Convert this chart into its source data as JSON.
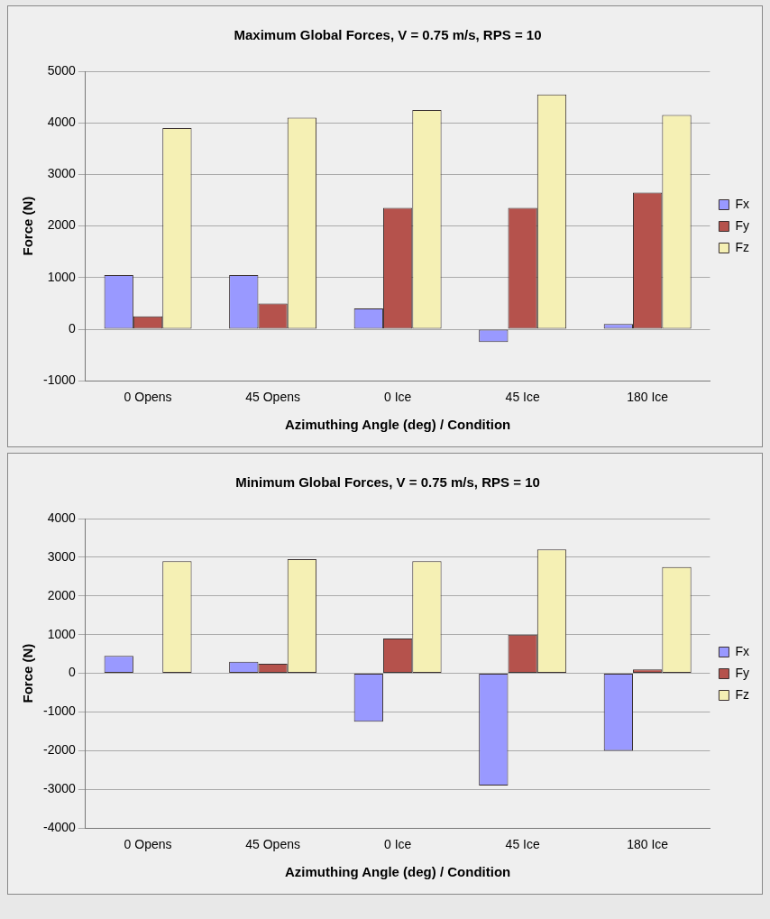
{
  "chart_data": [
    {
      "type": "bar",
      "title": "Maximum Global Forces, V = 0.75 m/s, RPS = 10",
      "xlabel": "Azimuthing Angle (deg) / Condition",
      "ylabel": "Force (N)",
      "categories": [
        "0 Opens",
        "45 Opens",
        "0 Ice",
        "45 Ice",
        "180 Ice"
      ],
      "series": [
        {
          "name": "Fx",
          "color": "#9999ff",
          "values": [
            1050,
            1050,
            400,
            -250,
            100
          ]
        },
        {
          "name": "Fy",
          "color": "#b5524c",
          "values": [
            250,
            500,
            2350,
            2350,
            2650
          ]
        },
        {
          "name": "Fz",
          "color": "#f5f0b4",
          "values": [
            3900,
            4100,
            4250,
            4550,
            4150
          ]
        }
      ],
      "ylim": [
        -1000,
        5000
      ],
      "yticks": [
        -1000,
        0,
        1000,
        2000,
        3000,
        4000,
        5000
      ],
      "grid": "y",
      "legend": "right"
    },
    {
      "type": "bar",
      "title": "Minimum Global Forces, V = 0.75 m/s, RPS = 10",
      "xlabel": "Azimuthing Angle (deg) / Condition",
      "ylabel": "Force (N)",
      "categories": [
        "0 Opens",
        "45 Opens",
        "0 Ice",
        "45 Ice",
        "180 Ice"
      ],
      "series": [
        {
          "name": "Fx",
          "color": "#9999ff",
          "values": [
            450,
            300,
            -1250,
            -2900,
            -2000
          ]
        },
        {
          "name": "Fy",
          "color": "#b5524c",
          "values": [
            null,
            250,
            900,
            1000,
            100
          ]
        },
        {
          "name": "Fz",
          "color": "#f5f0b4",
          "values": [
            2900,
            2950,
            2900,
            3200,
            2750
          ]
        }
      ],
      "ylim": [
        -4000,
        4000
      ],
      "yticks": [
        -4000,
        -3000,
        -2000,
        -1000,
        0,
        1000,
        2000,
        3000,
        4000
      ],
      "grid": "y",
      "legend": "right"
    }
  ]
}
